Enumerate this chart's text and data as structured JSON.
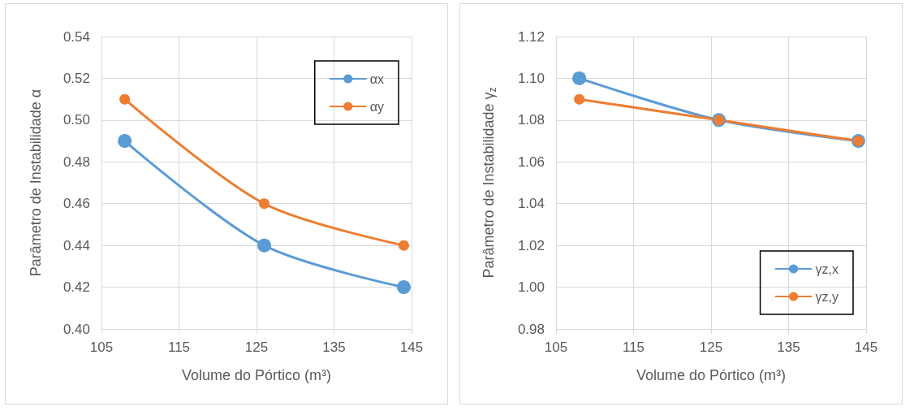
{
  "chart_data": [
    {
      "type": "line",
      "xlabel": "Volume do Pórtico (m³)",
      "ylabel": "Parâmetro de Instabilidade α",
      "x": [
        108,
        126,
        144
      ],
      "series": [
        {
          "name": "αx",
          "color": "#5b9bd5",
          "values": [
            0.49,
            0.44,
            0.42
          ]
        },
        {
          "name": "αy",
          "color": "#ed7d31",
          "values": [
            0.51,
            0.46,
            0.44
          ]
        }
      ],
      "xlim": [
        105,
        145
      ],
      "xticks": [
        105,
        115,
        125,
        135,
        145
      ],
      "ylim": [
        0.4,
        0.54
      ],
      "yticks": [
        {
          "value": 0.4,
          "label": "0.40"
        },
        {
          "value": 0.42,
          "label": "0.42"
        },
        {
          "value": 0.44,
          "label": "0.44"
        },
        {
          "value": 0.46,
          "label": "0.46"
        },
        {
          "value": 0.48,
          "label": "0.48"
        },
        {
          "value": 0.5,
          "label": "0.50"
        },
        {
          "value": 0.52,
          "label": "0.52"
        },
        {
          "value": 0.54,
          "label": "0.54"
        }
      ],
      "grid": true,
      "legend": "top right",
      "marker": "circle",
      "line_style": "solid"
    },
    {
      "type": "line",
      "xlabel": "Volume do Pórtico (m³)",
      "ylabel": "Parâmetro de Instabilidade γ$_{z}$",
      "x": [
        108,
        126,
        144
      ],
      "series": [
        {
          "name": "γz,x",
          "color": "#5b9bd5",
          "values": [
            1.1,
            1.08,
            1.07
          ]
        },
        {
          "name": "γz,y",
          "color": "#ed7d31",
          "values": [
            1.09,
            1.08,
            1.07
          ]
        }
      ],
      "xlim": [
        105,
        145
      ],
      "xticks": [
        105,
        115,
        125,
        135,
        145
      ],
      "ylim": [
        0.98,
        1.12
      ],
      "yticks": [
        {
          "value": 0.98,
          "label": "0.98"
        },
        {
          "value": 1,
          "label": "1.00"
        },
        {
          "value": 1.02,
          "label": "1.02"
        },
        {
          "value": 1.04,
          "label": "1.04"
        },
        {
          "value": 1.06,
          "label": "1.06"
        },
        {
          "value": 1.08,
          "label": "1.08"
        },
        {
          "value": 1.1,
          "label": "1.10"
        },
        {
          "value": 1.12,
          "label": "1.12"
        }
      ],
      "grid": true,
      "legend": "bottom right",
      "marker": "circle",
      "line_style": "solid"
    }
  ]
}
